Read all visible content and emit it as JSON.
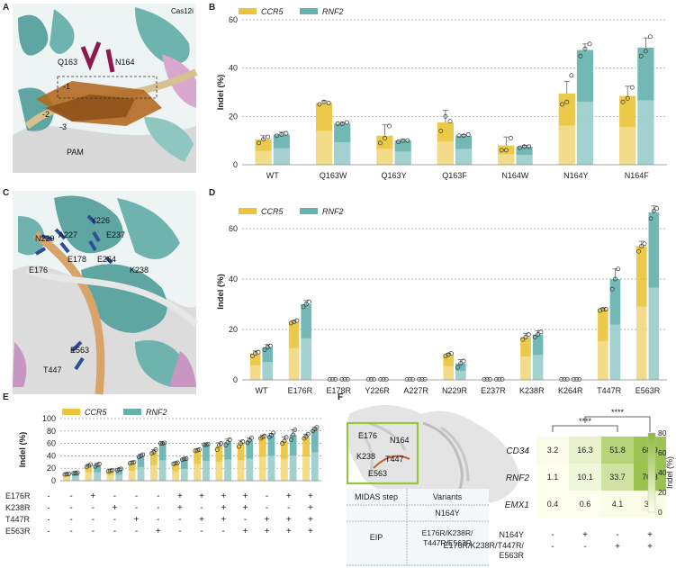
{
  "panel_labels": [
    "A",
    "B",
    "C",
    "D",
    "E",
    "F"
  ],
  "colors": {
    "ccr5": "#E9C43C",
    "rnf2": "#66B2AF",
    "heat_low": "#FFFFF0",
    "heat_high": "#8CBB3A",
    "box": "#9BC53D"
  },
  "structA": {
    "labels": [
      "Q163",
      "N164",
      "Cas12i",
      "-1",
      "-2",
      "-3",
      "PAM"
    ]
  },
  "structC": {
    "labels": [
      "N229",
      "A227",
      "Y226",
      "E237",
      "E176",
      "E178",
      "E264",
      "K238",
      "E563",
      "T447"
    ]
  },
  "chart_data": [
    {
      "id": "B",
      "type": "bar",
      "ylabel": "Indel (%)",
      "ylim": [
        0,
        60
      ],
      "yticks": [
        "0",
        "20",
        "40",
        "60"
      ],
      "grid": true,
      "legend": [
        "CCR5",
        "RNF2"
      ],
      "categories": [
        "WT",
        "Q163W",
        "Q163Y",
        "Q163F",
        "N164W",
        "N164Y",
        "N164F"
      ],
      "series": [
        {
          "name": "CCR5",
          "values": [
            10.5,
            25.5,
            12,
            17.5,
            8,
            29.5,
            28.5
          ],
          "err": [
            1.5,
            1,
            4.5,
            5,
            3.5,
            5,
            4
          ],
          "points": [
            [
              9,
              10.5,
              11.5
            ],
            [
              25,
              26,
              25.5
            ],
            [
              9,
              11,
              16
            ],
            [
              14,
              20,
              18
            ],
            [
              6,
              6,
              11
            ],
            [
              25,
              26,
              37
            ],
            [
              26,
              27.5,
              32
            ]
          ]
        },
        {
          "name": "RNF2",
          "values": [
            12.5,
            17,
            10,
            12,
            7.5,
            47.5,
            48.5
          ],
          "err": [
            1,
            0.5,
            0.5,
            0.5,
            0.5,
            2.5,
            4
          ],
          "points": [
            [
              12,
              12.5,
              13
            ],
            [
              17,
              17,
              17.5
            ],
            [
              9.5,
              10,
              10
            ],
            [
              12,
              12,
              12.5
            ],
            [
              7,
              7.5,
              7.5
            ],
            [
              45,
              48,
              50
            ],
            [
              45,
              47,
              53
            ]
          ]
        }
      ]
    },
    {
      "id": "D",
      "type": "bar",
      "ylabel": "Indel (%)",
      "ylim": [
        0,
        70
      ],
      "yticks": [
        "0",
        "20",
        "40",
        "60"
      ],
      "grid": true,
      "legend": [
        "CCR5",
        "RNF2"
      ],
      "categories": [
        "WT",
        "E176R",
        "E178R",
        "Y226R",
        "A227R",
        "N229R",
        "E237R",
        "K238R",
        "K264R",
        "T447R",
        "E563R"
      ],
      "series": [
        {
          "name": "CCR5",
          "values": [
            10.5,
            23,
            0.2,
            0.2,
            0.2,
            10,
            0.2,
            17,
            0.2,
            28,
            53
          ],
          "err": [
            1,
            0.5,
            0,
            0,
            0,
            0.5,
            0,
            1.5,
            0,
            0.5,
            2
          ],
          "points": [
            [
              9.5,
              10.5,
              11
            ],
            [
              22.5,
              23,
              23.5
            ],
            [
              0.2,
              0.2,
              0.2
            ],
            [
              0.2,
              0.2,
              0.2
            ],
            [
              0.2,
              0.2,
              0.2
            ],
            [
              9.5,
              10,
              10.5
            ],
            [
              0.2,
              0.2,
              0.2
            ],
            [
              16,
              17,
              18
            ],
            [
              0.2,
              0.2,
              0.2
            ],
            [
              27.5,
              28,
              28
            ],
            [
              51,
              53,
              54
            ]
          ]
        },
        {
          "name": "RNF2",
          "values": [
            13,
            30,
            0.2,
            0.2,
            0.2,
            6.5,
            0.2,
            18,
            0.2,
            40,
            66.5
          ],
          "err": [
            1,
            1.5,
            0,
            0,
            0,
            1.5,
            0,
            1.5,
            0,
            4,
            2.5
          ],
          "points": [
            [
              12,
              13,
              13.5
            ],
            [
              29,
              30,
              31
            ],
            [
              0.2,
              0.2,
              0.2
            ],
            [
              0.2,
              0.2,
              0.2
            ],
            [
              0.2,
              0.2,
              0.2
            ],
            [
              5,
              6.5,
              7.5
            ],
            [
              0.2,
              0.2,
              0.2
            ],
            [
              17,
              18,
              19
            ],
            [
              0.2,
              0.2,
              0.2
            ],
            [
              36,
              40,
              44
            ],
            [
              64,
              67,
              68
            ]
          ]
        }
      ]
    },
    {
      "id": "E",
      "type": "bar",
      "ylabel": "Indel (%)",
      "ylim": [
        0,
        100
      ],
      "yticks": [
        "0",
        "20",
        "40",
        "60",
        "80",
        "100"
      ],
      "grid": true,
      "legend": [
        "CCR5",
        "RNF2"
      ],
      "categories": [
        "1",
        "2",
        "3",
        "4",
        "5",
        "6",
        "7",
        "8",
        "9",
        "10",
        "11",
        "12"
      ],
      "row_labels": [
        "E176R",
        "K238R",
        "T447R",
        "E563R"
      ],
      "signs": [
        [
          "-",
          "+",
          "-",
          "-",
          "-",
          "+",
          "+",
          "+",
          "+",
          "-",
          "+",
          "+"
        ],
        [
          "-",
          "-",
          "+",
          "-",
          "-",
          "+",
          "-",
          "+",
          "+",
          "-",
          "-",
          "+"
        ],
        [
          "-",
          "-",
          "-",
          "+",
          "-",
          "-",
          "+",
          "+",
          "-",
          "+",
          "+",
          "+"
        ],
        [
          "-",
          "-",
          "-",
          "-",
          "+",
          "-",
          "-",
          "-",
          "+",
          "+",
          "+",
          "+"
        ]
      ],
      "series": [
        {
          "name": "CCR5",
          "values": [
            10.5,
            24,
            16,
            29,
            46,
            28,
            49,
            56,
            60,
            70,
            64,
            71
          ],
          "err": [
            1,
            2,
            2,
            2,
            4,
            2,
            2,
            5,
            5,
            3,
            6,
            4
          ],
          "points": [
            [
              10,
              10.5,
              11
            ],
            [
              22,
              24,
              26
            ],
            [
              15,
              16,
              17
            ],
            [
              28,
              29,
              30
            ],
            [
              44,
              46,
              50
            ],
            [
              27,
              28,
              29
            ],
            [
              48,
              49,
              50
            ],
            [
              50,
              57,
              60
            ],
            [
              55,
              60,
              63
            ],
            [
              68,
              70,
              72
            ],
            [
              60,
              64,
              70
            ],
            [
              68,
              71,
              75
            ]
          ]
        },
        {
          "name": "RNF2",
          "values": [
            12.5,
            25,
            18,
            40,
            60,
            35,
            58,
            62,
            65,
            73,
            74,
            83
          ],
          "err": [
            1,
            3,
            2,
            3,
            1,
            1,
            1,
            5,
            4,
            3,
            8,
            3
          ],
          "points": [
            [
              12,
              12.5,
              13
            ],
            [
              23,
              25,
              27
            ],
            [
              17,
              18,
              19
            ],
            [
              38,
              40,
              42
            ],
            [
              60,
              60,
              61
            ],
            [
              34,
              35,
              35.5
            ],
            [
              58,
              58,
              59
            ],
            [
              57,
              62,
              66
            ],
            [
              61,
              65,
              69
            ],
            [
              70,
              73,
              77
            ],
            [
              66,
              74,
              82
            ],
            [
              80,
              83,
              86
            ]
          ]
        }
      ]
    },
    {
      "id": "F",
      "type": "heatmap",
      "rows": [
        "CD34",
        "RNF2",
        "EMX1"
      ],
      "values": [
        [
          3.2,
          16.3,
          51.8,
          68.9
        ],
        [
          1.1,
          10.1,
          33.7,
          70.3
        ],
        [
          0.4,
          0.6,
          4.1,
          3.8
        ]
      ],
      "labels": [
        [
          "3.2",
          "16.3",
          "51.8",
          "68.9"
        ],
        [
          "1.1",
          "10.1",
          "33.7",
          "70.3"
        ],
        [
          "0.4",
          "0.6",
          "4.1",
          "3.8"
        ]
      ],
      "clim": [
        0,
        80
      ],
      "colorbar_ticks": [
        "0",
        "20",
        "40",
        "60",
        "80"
      ],
      "colorbar_label": "Indel (%)",
      "col_rows": [
        "N164Y",
        "E176R/K238R/T447R/E563R"
      ],
      "col_signs": [
        [
          "-",
          "+",
          "-",
          "+"
        ],
        [
          "-",
          "-",
          "+",
          "+"
        ]
      ],
      "significance": [
        "****",
        "****"
      ]
    }
  ],
  "panelF_table": {
    "header": [
      "MIDAS step",
      "Variants"
    ],
    "rows": [
      [
        "",
        "N164Y"
      ],
      [
        "EIP",
        "E176R/K238R/ T447R/E563R"
      ]
    ]
  },
  "panelF_struct_labels": [
    "E176",
    "N164",
    "K238",
    "T447",
    "E563"
  ]
}
